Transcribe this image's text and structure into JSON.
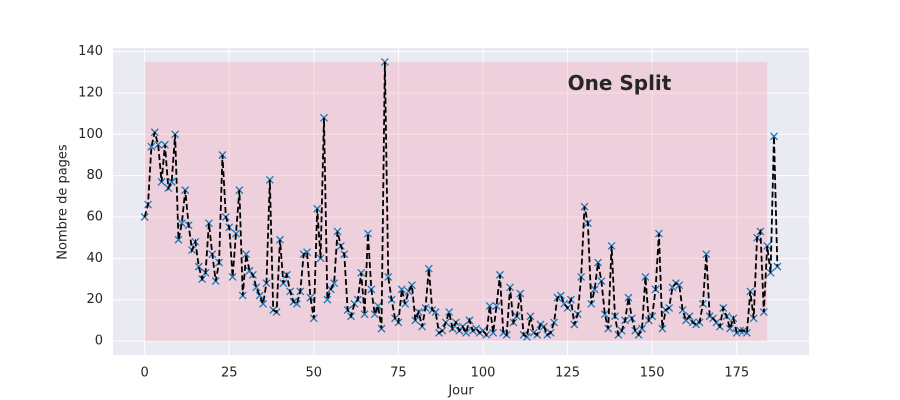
{
  "chart_data": {
    "type": "line",
    "annotation": {
      "text": "One Split",
      "x": 125,
      "y": 124
    },
    "xlabel": "Jour",
    "ylabel": "Nombre de pages",
    "span": {
      "x": [
        0,
        184
      ],
      "y": [
        0,
        135
      ],
      "color": "#f3a0b4",
      "opacity": 0.35
    },
    "line_color": "#000000",
    "marker_color": "#1f77b4",
    "grid": true,
    "xlim": [
      -9.35,
      196.35
    ],
    "ylim": [
      -6.75,
      141.75
    ],
    "xticks": [
      0,
      25,
      50,
      75,
      100,
      125,
      150,
      175
    ],
    "yticks": [
      0,
      20,
      40,
      60,
      80,
      100,
      120,
      140
    ],
    "x": [
      0,
      1,
      2,
      3,
      4,
      5,
      6,
      7,
      8,
      9,
      10,
      11,
      12,
      13,
      14,
      15,
      16,
      17,
      18,
      19,
      20,
      21,
      22,
      23,
      24,
      25,
      26,
      27,
      28,
      29,
      30,
      31,
      32,
      33,
      34,
      35,
      36,
      37,
      38,
      39,
      40,
      41,
      42,
      43,
      44,
      45,
      46,
      47,
      48,
      49,
      50,
      51,
      52,
      53,
      54,
      55,
      56,
      57,
      58,
      59,
      60,
      61,
      62,
      63,
      64,
      65,
      66,
      67,
      68,
      69,
      70,
      71,
      72,
      73,
      74,
      75,
      76,
      77,
      78,
      79,
      80,
      81,
      82,
      83,
      84,
      85,
      86,
      87,
      88,
      89,
      90,
      91,
      92,
      93,
      94,
      95,
      96,
      97,
      98,
      99,
      100,
      101,
      102,
      103,
      104,
      105,
      106,
      107,
      108,
      109,
      110,
      111,
      112,
      113,
      114,
      115,
      116,
      117,
      118,
      119,
      120,
      121,
      122,
      123,
      124,
      125,
      126,
      127,
      128,
      129,
      130,
      131,
      132,
      133,
      134,
      135,
      136,
      137,
      138,
      139,
      140,
      141,
      142,
      143,
      144,
      145,
      146,
      147,
      148,
      149,
      150,
      151,
      152,
      153,
      154,
      155,
      156,
      157,
      158,
      159,
      160,
      161,
      162,
      163,
      164,
      165,
      166,
      167,
      168,
      169,
      170,
      171,
      172,
      173,
      174,
      175,
      176,
      177,
      178,
      179,
      180,
      181,
      182,
      183,
      184,
      185,
      186,
      187
    ],
    "values": [
      60,
      66,
      94,
      101,
      95,
      77,
      95,
      74,
      77,
      100,
      49,
      57,
      73,
      56,
      44,
      48,
      36,
      30,
      33,
      57,
      42,
      29,
      38,
      90,
      60,
      55,
      31,
      52,
      73,
      22,
      42,
      34,
      32,
      26,
      22,
      18,
      28,
      78,
      15,
      14,
      49,
      28,
      32,
      24,
      19,
      18,
      24,
      42,
      43,
      21,
      11,
      64,
      40,
      108,
      20,
      25,
      28,
      53,
      46,
      42,
      15,
      12,
      18,
      20,
      33,
      13,
      52,
      25,
      13,
      17,
      6,
      135,
      31,
      20,
      11,
      9,
      25,
      18,
      24,
      27,
      10,
      14,
      7,
      16,
      35,
      15,
      14,
      4,
      5,
      9,
      14,
      6,
      9,
      5,
      7,
      4,
      10,
      5,
      6,
      4,
      5,
      3,
      17,
      4,
      17,
      32,
      4,
      3,
      26,
      9,
      12,
      23,
      3,
      2,
      12,
      4,
      3,
      8,
      7,
      3,
      4,
      9,
      21,
      22,
      18,
      16,
      20,
      8,
      13,
      31,
      65,
      57,
      18,
      25,
      38,
      29,
      13,
      6,
      46,
      12,
      3,
      5,
      10,
      21,
      11,
      5,
      3,
      6,
      31,
      10,
      12,
      25,
      52,
      6,
      15,
      16,
      26,
      28,
      27,
      15,
      10,
      12,
      9,
      8,
      9,
      18,
      42,
      12,
      11,
      9,
      7,
      16,
      12,
      6,
      11,
      4,
      5,
      5,
      4,
      24,
      11,
      50,
      53,
      14,
      46,
      33,
      99,
      36
    ]
  }
}
